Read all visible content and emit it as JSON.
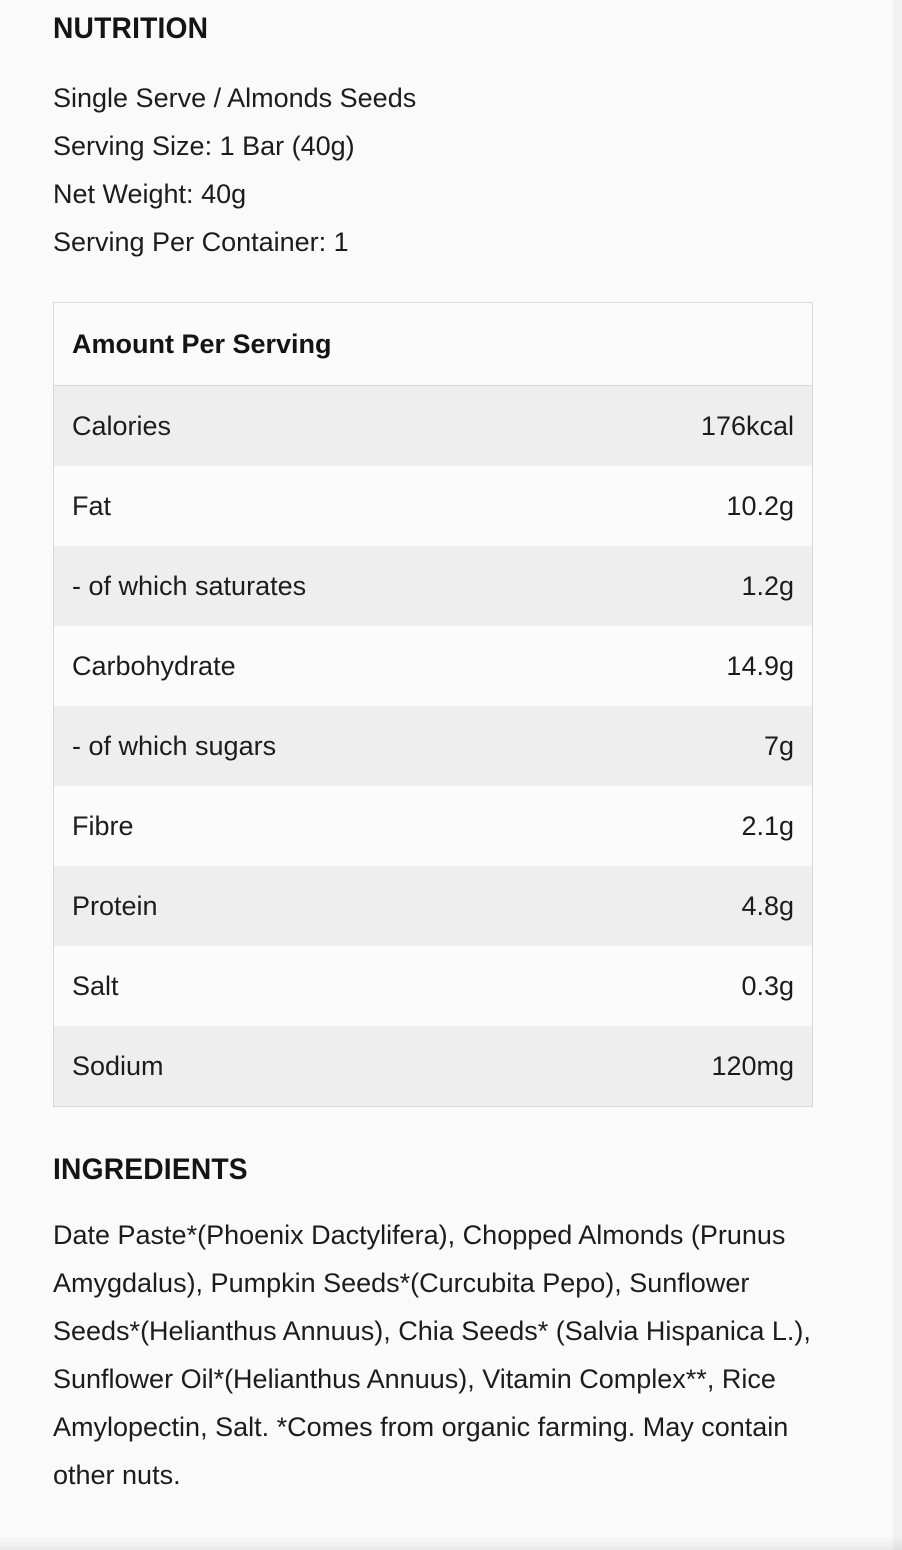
{
  "nutrition": {
    "heading": "NUTRITION",
    "serving_info": [
      "Single Serve / Almonds Seeds",
      "Serving Size: 1 Bar (40g)",
      "Net Weight: 40g",
      "Serving Per Container: 1"
    ],
    "table": {
      "header": "Amount Per Serving",
      "rows": [
        {
          "label": "Calories",
          "value": "176kcal"
        },
        {
          "label": "Fat",
          "value": "10.2g"
        },
        {
          "label": "- of which saturates",
          "value": "1.2g"
        },
        {
          "label": "Carbohydrate",
          "value": "14.9g"
        },
        {
          "label": "- of which sugars",
          "value": "7g"
        },
        {
          "label": "Fibre",
          "value": "2.1g"
        },
        {
          "label": "Protein",
          "value": "4.8g"
        },
        {
          "label": "Salt",
          "value": "0.3g"
        },
        {
          "label": "Sodium",
          "value": "120mg"
        }
      ]
    }
  },
  "ingredients": {
    "heading": "INGREDIENTS",
    "text": "Date Paste*(Phoenix Dactylifera), Chopped Almonds (Prunus Amygdalus), Pumpkin Seeds*(Curcubita Pepo), Sunflower Seeds*(Helianthus Annuus), Chia Seeds* (Salvia Hispanica L.), Sunflower Oil*(Helianthus Annuus), Vitamin Complex**, Rice Amylopectin, Salt. *Comes from organic farming. May contain other nuts."
  },
  "colors": {
    "page_bg": "#fafafa",
    "row_stripe_bg": "#eeeeee",
    "row_light_bg": "#fbfbfb",
    "table_border": "#d9d9d9",
    "text": "#1c1c1e",
    "heading_text": "#141414",
    "scrollbar_track": "#f1f1f1"
  }
}
